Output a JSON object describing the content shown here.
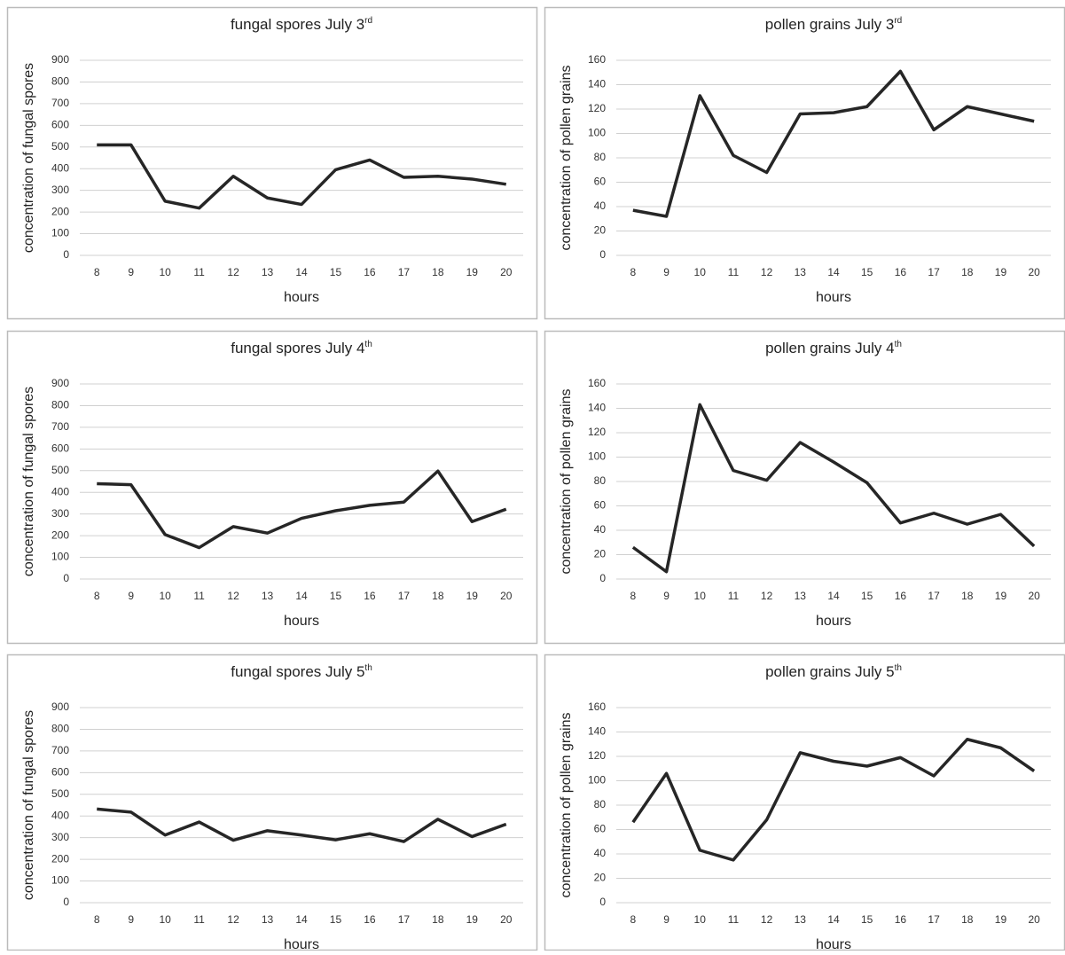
{
  "chart_data": [
    {
      "type": "line",
      "title": "fungal spores July 3",
      "title_superscript": "rd",
      "xlabel": "hours",
      "ylabel": "concentration of fungal spores",
      "categories": [
        8,
        9,
        10,
        11,
        12,
        13,
        14,
        15,
        16,
        17,
        18,
        19,
        20
      ],
      "values": [
        510,
        510,
        250,
        218,
        365,
        265,
        235,
        395,
        440,
        360,
        365,
        352,
        328
      ],
      "color": "#262626",
      "ylim": [
        0,
        900
      ],
      "yticks": [
        0,
        100,
        200,
        300,
        400,
        500,
        600,
        700,
        800,
        900
      ],
      "grid": true
    },
    {
      "type": "line",
      "title": "pollen grains July 3",
      "title_superscript": "rd",
      "xlabel": "hours",
      "ylabel": "concentration of pollen grains",
      "categories": [
        8,
        9,
        10,
        11,
        12,
        13,
        14,
        15,
        16,
        17,
        18,
        19,
        20
      ],
      "values": [
        37,
        32,
        131,
        82,
        68,
        116,
        117,
        122,
        151,
        103,
        122,
        116,
        110
      ],
      "color": "#262626",
      "ylim": [
        0,
        160
      ],
      "yticks": [
        0,
        20,
        40,
        60,
        80,
        100,
        120,
        140,
        160
      ],
      "grid": true
    },
    {
      "type": "line",
      "title": "fungal spores July 4",
      "title_superscript": "th",
      "xlabel": "hours",
      "ylabel": "concentration of fungal spores",
      "categories": [
        8,
        9,
        10,
        11,
        12,
        13,
        14,
        15,
        16,
        17,
        18,
        19,
        20
      ],
      "values": [
        440,
        435,
        205,
        145,
        242,
        212,
        280,
        315,
        340,
        355,
        498,
        265,
        322
      ],
      "color": "#262626",
      "ylim": [
        0,
        900
      ],
      "yticks": [
        0,
        100,
        200,
        300,
        400,
        500,
        600,
        700,
        800,
        900
      ],
      "grid": true
    },
    {
      "type": "line",
      "title": "pollen grains July 4",
      "title_superscript": "th",
      "xlabel": "hours",
      "ylabel": "concentration of pollen grains",
      "categories": [
        8,
        9,
        10,
        11,
        12,
        13,
        14,
        15,
        16,
        17,
        18,
        19,
        20
      ],
      "values": [
        26,
        6,
        143,
        89,
        81,
        112,
        96,
        79,
        46,
        54,
        45,
        53,
        27
      ],
      "color": "#262626",
      "ylim": [
        0,
        160
      ],
      "yticks": [
        0,
        20,
        40,
        60,
        80,
        100,
        120,
        140,
        160
      ],
      "grid": true
    },
    {
      "type": "line",
      "title": "fungal spores July 5",
      "title_superscript": "th",
      "xlabel": "hours",
      "ylabel": "concentration of fungal spores",
      "categories": [
        8,
        9,
        10,
        11,
        12,
        13,
        14,
        15,
        16,
        17,
        18,
        19,
        20
      ],
      "values": [
        432,
        418,
        312,
        372,
        288,
        332,
        312,
        290,
        318,
        282,
        385,
        305,
        362
      ],
      "color": "#262626",
      "ylim": [
        0,
        900
      ],
      "yticks": [
        0,
        100,
        200,
        300,
        400,
        500,
        600,
        700,
        800,
        900
      ],
      "grid": true
    },
    {
      "type": "line",
      "title": "pollen grains July 5",
      "title_superscript": "th",
      "xlabel": "hours",
      "ylabel": "concentration of pollen grains",
      "categories": [
        8,
        9,
        10,
        11,
        12,
        13,
        14,
        15,
        16,
        17,
        18,
        19,
        20
      ],
      "values": [
        66,
        106,
        43,
        35,
        68,
        123,
        116,
        112,
        119,
        104,
        134,
        127,
        108
      ],
      "color": "#262626",
      "ylim": [
        0,
        160
      ],
      "yticks": [
        0,
        20,
        40,
        60,
        80,
        100,
        120,
        140,
        160
      ],
      "grid": true
    }
  ]
}
